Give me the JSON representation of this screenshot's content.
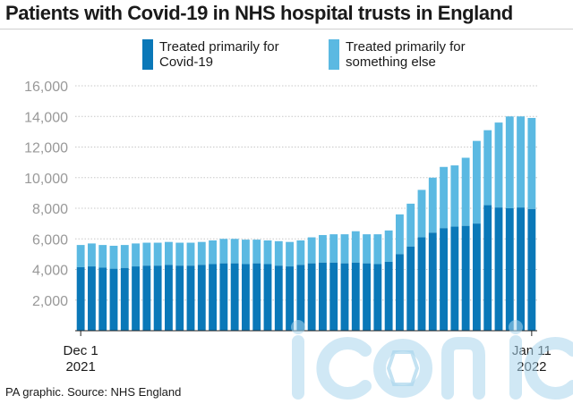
{
  "title": "Patients with Covid-19 in NHS hospital trusts in England",
  "source": "PA graphic. Source: NHS England",
  "watermark": "iconic",
  "colors": {
    "primary": "#0a78b8",
    "other": "#5bb9e2",
    "grid": "#c8c8c8",
    "tick_text": "#999999"
  },
  "chart_data": {
    "type": "bar",
    "stacked": true,
    "title": "Patients with Covid-19 in NHS hospital trusts in England",
    "xlabel": "",
    "ylabel": "",
    "ylim": [
      0,
      16000
    ],
    "yticks": [
      2000,
      4000,
      6000,
      8000,
      10000,
      12000,
      14000,
      16000
    ],
    "ytick_labels": [
      "2,000",
      "4,000",
      "6,000",
      "8,000",
      "10,000",
      "12,000",
      "14,000",
      "16,000"
    ],
    "xtick_labels": [
      {
        "index": 0,
        "line1": "Dec 1",
        "line2": "2021"
      },
      {
        "index": 41,
        "line1": "Jan 11",
        "line2": "2022"
      }
    ],
    "grid": true,
    "legend": "top",
    "categories": [
      "Dec 1",
      "Dec 2",
      "Dec 3",
      "Dec 4",
      "Dec 5",
      "Dec 6",
      "Dec 7",
      "Dec 8",
      "Dec 9",
      "Dec 10",
      "Dec 11",
      "Dec 12",
      "Dec 13",
      "Dec 14",
      "Dec 15",
      "Dec 16",
      "Dec 17",
      "Dec 18",
      "Dec 19",
      "Dec 20",
      "Dec 21",
      "Dec 22",
      "Dec 23",
      "Dec 24",
      "Dec 25",
      "Dec 26",
      "Dec 27",
      "Dec 28",
      "Dec 29",
      "Dec 30",
      "Dec 31",
      "Jan 1",
      "Jan 2",
      "Jan 3",
      "Jan 4",
      "Jan 5",
      "Jan 6",
      "Jan 7",
      "Jan 8",
      "Jan 9",
      "Jan 10",
      "Jan 11"
    ],
    "series": [
      {
        "name": "Treated primarily for Covid-19",
        "values": [
          4150,
          4200,
          4120,
          4050,
          4100,
          4200,
          4250,
          4250,
          4300,
          4250,
          4250,
          4300,
          4350,
          4400,
          4400,
          4350,
          4400,
          4350,
          4250,
          4200,
          4300,
          4400,
          4450,
          4450,
          4400,
          4450,
          4400,
          4350,
          4500,
          5000,
          5500,
          6100,
          6400,
          6700,
          6800,
          6850,
          7000,
          8200,
          8050,
          8000,
          8050,
          7950
        ],
        "note_totals": [
          5600,
          5700,
          5600,
          5550,
          5600,
          5700,
          5750,
          5750,
          5800,
          5750,
          5750,
          5800,
          5900,
          6000,
          6000,
          5950,
          5950,
          5900,
          5850,
          5800,
          5900,
          6100,
          6250,
          6300,
          6300,
          6500,
          6300,
          6300,
          6550,
          7600,
          8300,
          9200,
          10000,
          10700,
          10800,
          11300,
          12400,
          13100,
          13600,
          14000,
          14000,
          13900
        ]
      },
      {
        "name": "Treated primarily for something else",
        "values": [
          1450,
          1500,
          1480,
          1500,
          1500,
          1500,
          1500,
          1500,
          1500,
          1500,
          1500,
          1500,
          1550,
          1600,
          1600,
          1600,
          1550,
          1550,
          1600,
          1600,
          1600,
          1700,
          1800,
          1850,
          1900,
          2050,
          1900,
          1950,
          2050,
          2600,
          2800,
          3100,
          3600,
          4000,
          4000,
          4450,
          5400,
          4900,
          5550,
          6000,
          5950,
          5950
        ]
      }
    ]
  }
}
